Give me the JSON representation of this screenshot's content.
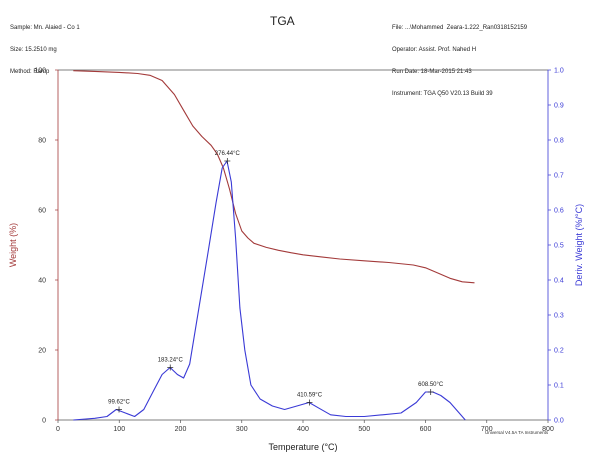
{
  "header_left": [
    "Sample: Mn. Alaied - Co 1",
    "Size: 15.2510 mg",
    "Method: Ramp"
  ],
  "header_right": [
    "File: ...\\Mohammed  Zeara-1.222_Ran0318152159",
    "Operator: Assist. Prof. Nahed H",
    "Run Date: 18-Mar-2015 21:43",
    "Instrument: TGA Q50 V20.13 Build 39"
  ],
  "footer": "Universal V4.5A TA Instruments",
  "chart_data": {
    "type": "line",
    "title": "TGA",
    "xlabel": "Temperature (°C)",
    "ylabel_left": "Weight (%)",
    "ylabel_right": "Deriv. Weight (%/°C)",
    "xlim": [
      0,
      800
    ],
    "ylim_left": [
      0,
      100
    ],
    "ylim_right": [
      0,
      1.0
    ],
    "x_ticks": [
      0,
      100,
      200,
      300,
      400,
      500,
      600,
      700,
      800
    ],
    "y_left_ticks": [
      0,
      20,
      40,
      60,
      80,
      100
    ],
    "y_right_ticks": [
      0.0,
      0.1,
      0.2,
      0.3,
      0.4,
      0.5,
      0.6,
      0.7,
      0.8,
      0.9,
      1.0
    ],
    "y_right_tick_labels": [
      "0.0",
      "0.1",
      "0.2",
      "0.3",
      "0.4",
      "0.5",
      "0.6",
      "0.7",
      "0.8",
      "0.9",
      "1.0"
    ],
    "grid": false,
    "series": [
      {
        "axis": "left",
        "color": "#a33a3a",
        "x": [
          25,
          60,
          100,
          130,
          150,
          170,
          190,
          205,
          220,
          235,
          250,
          260,
          270,
          280,
          290,
          300,
          310,
          320,
          340,
          360,
          380,
          400,
          430,
          460,
          500,
          540,
          580,
          600,
          620,
          640,
          660,
          680
        ],
        "y": [
          99.8,
          99.6,
          99.3,
          99.0,
          98.5,
          97.0,
          93.0,
          88.5,
          84.0,
          81.0,
          78.5,
          76.0,
          72.0,
          66.0,
          59.0,
          54.0,
          52.0,
          50.5,
          49.3,
          48.5,
          47.8,
          47.2,
          46.6,
          46.0,
          45.5,
          45.0,
          44.3,
          43.5,
          42.0,
          40.5,
          39.5,
          39.2
        ]
      },
      {
        "axis": "right",
        "color": "#3a3ad6",
        "x": [
          25,
          60,
          80,
          95,
          110,
          125,
          140,
          155,
          170,
          183,
          195,
          205,
          215,
          230,
          245,
          258,
          268,
          276,
          283,
          290,
          297,
          305,
          315,
          330,
          350,
          370,
          390,
          410,
          425,
          445,
          470,
          500,
          530,
          560,
          585,
          600,
          612,
          625,
          640,
          655,
          665
        ],
        "y": [
          0.0,
          0.005,
          0.01,
          0.03,
          0.02,
          0.01,
          0.03,
          0.08,
          0.13,
          0.15,
          0.13,
          0.12,
          0.16,
          0.32,
          0.48,
          0.62,
          0.72,
          0.74,
          0.68,
          0.52,
          0.32,
          0.2,
          0.1,
          0.06,
          0.04,
          0.03,
          0.04,
          0.05,
          0.035,
          0.015,
          0.01,
          0.01,
          0.015,
          0.02,
          0.05,
          0.08,
          0.08,
          0.07,
          0.05,
          0.02,
          0.0
        ]
      }
    ],
    "annotations": [
      {
        "text": "99.62°C",
        "x": 99.62,
        "y": 0.03,
        "axis": "right"
      },
      {
        "text": "183.24°C",
        "x": 183.24,
        "y": 0.15,
        "axis": "right"
      },
      {
        "text": "276.44°C",
        "x": 276.44,
        "y": 0.74,
        "axis": "right"
      },
      {
        "text": "410.59°C",
        "x": 410.59,
        "y": 0.05,
        "axis": "right"
      },
      {
        "text": "608.50°C",
        "x": 608.5,
        "y": 0.08,
        "axis": "right"
      }
    ]
  }
}
